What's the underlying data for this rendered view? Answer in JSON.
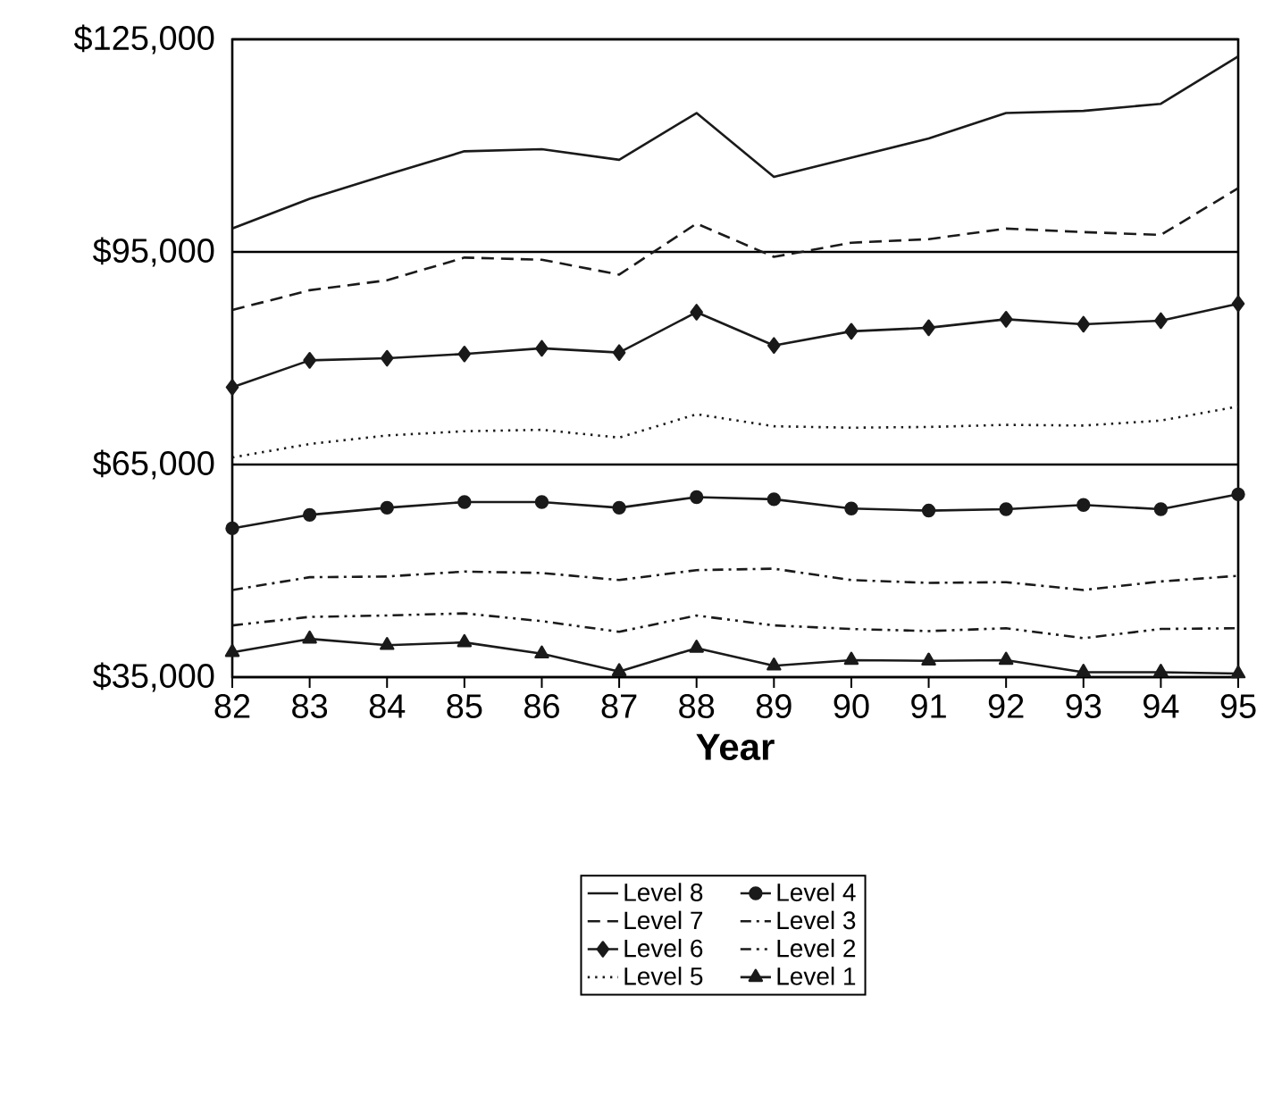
{
  "chart_data": {
    "type": "line",
    "xlabel": "Year",
    "categories": [
      "82",
      "83",
      "84",
      "85",
      "86",
      "87",
      "88",
      "89",
      "90",
      "91",
      "92",
      "93",
      "94",
      "95"
    ],
    "ylim": [
      35000,
      125000
    ],
    "yticks": [
      {
        "value": 35000,
        "label": "$35,000"
      },
      {
        "value": 65000,
        "label": "$65,000"
      },
      {
        "value": 95000,
        "label": "$95,000"
      },
      {
        "value": 125000,
        "label": "$125,000"
      }
    ],
    "grid": "y",
    "legend": "bottom",
    "series": [
      {
        "name": "Level 8",
        "color": "#1a1a1a",
        "line_style": "solid",
        "marker": "none",
        "values": [
          98300,
          102500,
          105900,
          109200,
          109500,
          108000,
          114600,
          105600,
          108300,
          111000,
          114600,
          114900,
          115900,
          122600
        ]
      },
      {
        "name": "Level 7",
        "color": "#1a1a1a",
        "line_style": "dashed",
        "marker": "none",
        "values": [
          86800,
          89600,
          91000,
          94200,
          93900,
          91800,
          99000,
          94300,
          96300,
          96800,
          98300,
          97800,
          97400,
          104000
        ]
      },
      {
        "name": "Level 6",
        "color": "#1a1a1a",
        "line_style": "solid",
        "marker": "diamond",
        "values": [
          75900,
          79700,
          80000,
          80600,
          81400,
          80800,
          86500,
          81800,
          83800,
          84300,
          85500,
          84800,
          85300,
          87700
        ]
      },
      {
        "name": "Level 5",
        "color": "#1a1a1a",
        "line_style": "dotted",
        "marker": "none",
        "values": [
          66000,
          67900,
          69100,
          69700,
          69900,
          68800,
          72100,
          70400,
          70200,
          70300,
          70600,
          70500,
          71200,
          73200
        ]
      },
      {
        "name": "Level 4",
        "color": "#1a1a1a",
        "line_style": "solid",
        "marker": "circle",
        "values": [
          56000,
          57900,
          58900,
          59700,
          59700,
          58900,
          60400,
          60100,
          58800,
          58500,
          58700,
          59300,
          58700,
          60800
        ]
      },
      {
        "name": "Level 3",
        "color": "#1a1a1a",
        "line_style": "dashdot",
        "marker": "none",
        "values": [
          47300,
          49100,
          49200,
          49900,
          49700,
          48700,
          50100,
          50300,
          48700,
          48300,
          48400,
          47300,
          48500,
          49300
        ]
      },
      {
        "name": "Level 2",
        "color": "#1a1a1a",
        "line_style": "dashdotdot",
        "marker": "none",
        "values": [
          42300,
          43500,
          43700,
          44000,
          42900,
          41400,
          43700,
          42300,
          41800,
          41500,
          41900,
          40500,
          41800,
          41900
        ]
      },
      {
        "name": "Level 1",
        "color": "#1a1a1a",
        "line_style": "solid",
        "marker": "triangle",
        "values": [
          38500,
          40400,
          39500,
          39900,
          38300,
          35800,
          39100,
          36600,
          37400,
          37300,
          37400,
          35700,
          35700,
          35500
        ]
      }
    ]
  }
}
